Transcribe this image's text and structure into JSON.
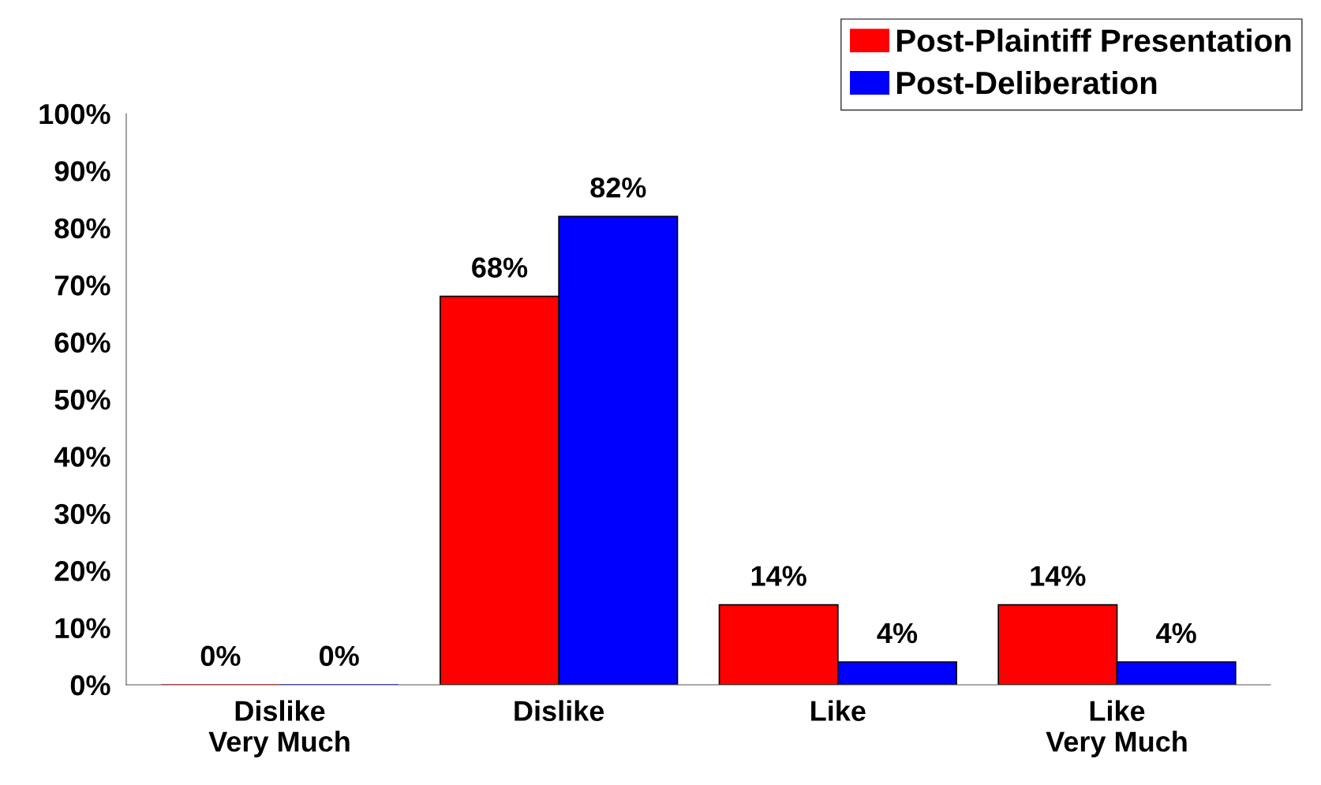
{
  "chart_data": {
    "type": "bar",
    "categories": [
      "Dislike\nVery Much",
      "Dislike",
      "Like",
      "Like\nVery Much"
    ],
    "series": [
      {
        "name": "Post-Plaintiff Presentation",
        "color": "#ff0000",
        "values": [
          0,
          68,
          14,
          14
        ],
        "value_labels": [
          "0%",
          "68%",
          "14%",
          "14%"
        ]
      },
      {
        "name": "Post-Deliberation",
        "color": "#0000ff",
        "values": [
          0,
          82,
          4,
          4
        ],
        "value_labels": [
          "0%",
          "82%",
          "4%",
          "4%"
        ]
      }
    ],
    "ylim": [
      0,
      100
    ],
    "yticks": [
      {
        "value": 0,
        "label": "0%"
      },
      {
        "value": 10,
        "label": "10%"
      },
      {
        "value": 20,
        "label": "20%"
      },
      {
        "value": 30,
        "label": "30%"
      },
      {
        "value": 40,
        "label": "40%"
      },
      {
        "value": 50,
        "label": "50%"
      },
      {
        "value": 60,
        "label": "60%"
      },
      {
        "value": 70,
        "label": "70%"
      },
      {
        "value": 80,
        "label": "80%"
      },
      {
        "value": 90,
        "label": "90%"
      },
      {
        "value": 100,
        "label": "100%"
      }
    ],
    "grid": false,
    "legend": "top right"
  }
}
